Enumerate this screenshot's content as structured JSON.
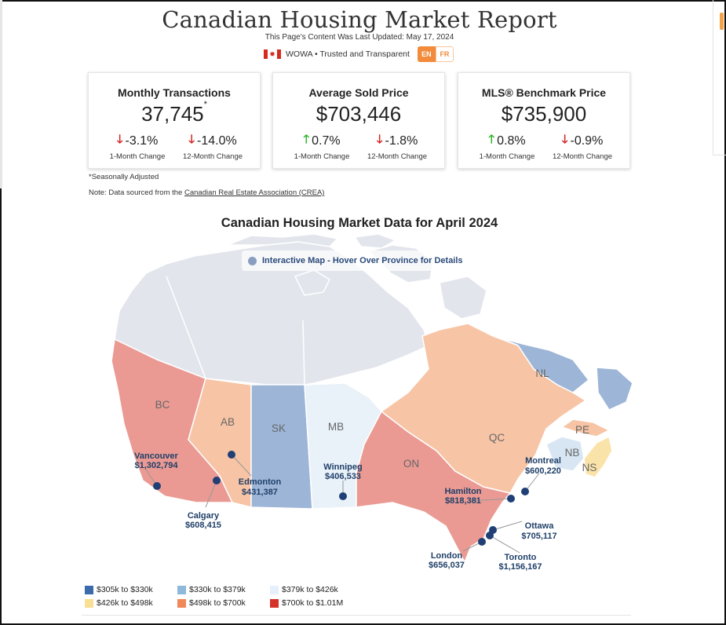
{
  "header": {
    "title": "Canadian Housing Market Report",
    "updated": "This Page's Content Was Last Updated: May 17, 2024",
    "brand": "WOWA • Trusted and Transparent",
    "lang_en": "EN",
    "lang_fr": "FR",
    "flag_glyph": "✹"
  },
  "cards": [
    {
      "title": "Monthly Transactions",
      "value": "37,745",
      "marker": "*",
      "m1": {
        "value": "-3.1%",
        "dir": "down",
        "label": "1-Month Change"
      },
      "m12": {
        "value": "-14.0%",
        "dir": "down",
        "label": "12-Month Change"
      }
    },
    {
      "title": "Average Sold Price",
      "value": "$703,446",
      "marker": "",
      "m1": {
        "value": "0.7%",
        "dir": "up",
        "label": "1-Month Change"
      },
      "m12": {
        "value": "-1.8%",
        "dir": "down",
        "label": "12-Month Change"
      }
    },
    {
      "title": "MLS® Benchmark Price",
      "value": "$735,900",
      "marker": "",
      "m1": {
        "value": "0.8%",
        "dir": "up",
        "label": "1-Month Change"
      },
      "m12": {
        "value": "-0.9%",
        "dir": "down",
        "label": "12-Month Change"
      }
    }
  ],
  "arrows": {
    "up": "🡑",
    "down": "🡓",
    "up_color": "#2bb32b",
    "down_color": "#d22222"
  },
  "notes": {
    "seasonal": "*Seasonally Adjusted",
    "source_prefix": "Note: Data sourced from the ",
    "source_link": "Canadian Real Estate Association (CREA)"
  },
  "map": {
    "title": "Canadian Housing Market Data for April 2024",
    "hint": "Interactive Map - Hover Over Province for Details",
    "provinces": [
      {
        "code": "BC",
        "color": "#ea9a93"
      },
      {
        "code": "AB",
        "color": "#f7c4a5"
      },
      {
        "code": "SK",
        "color": "#9db5d6"
      },
      {
        "code": "MB",
        "color": "#e9f1f9"
      },
      {
        "code": "ON",
        "color": "#ea9a93"
      },
      {
        "code": "QC",
        "color": "#f7c4a5"
      },
      {
        "code": "NL",
        "color": "#9db5d6"
      },
      {
        "code": "PE",
        "color": "#f7c4a5"
      },
      {
        "code": "NB",
        "color": "#d8e6f3"
      },
      {
        "code": "NS",
        "color": "#fae3a8"
      }
    ],
    "cities": [
      {
        "name": "Vancouver",
        "price": "$1,302,794"
      },
      {
        "name": "Edmonton",
        "price": "$431,387"
      },
      {
        "name": "Calgary",
        "price": "$608,415"
      },
      {
        "name": "Winnipeg",
        "price": "$406,533"
      },
      {
        "name": "Hamilton",
        "price": "$818,381"
      },
      {
        "name": "Montreal",
        "price": "$600,220"
      },
      {
        "name": "Ottawa",
        "price": "$705,117"
      },
      {
        "name": "London",
        "price": "$656,037"
      },
      {
        "name": "Toronto",
        "price": "$1,156,167"
      }
    ]
  },
  "legend": [
    {
      "label": "$305k to $330k",
      "color": "#3b6aad"
    },
    {
      "label": "$330k to $379k",
      "color": "#8fb8da"
    },
    {
      "label": "$379k to $426k",
      "color": "#e6f0fa"
    },
    {
      "label": "$426k to $498k",
      "color": "#f9df93"
    },
    {
      "label": "$498k to $700k",
      "color": "#f0895a"
    },
    {
      "label": "$700k to $1.01M",
      "color": "#d4332a"
    }
  ]
}
